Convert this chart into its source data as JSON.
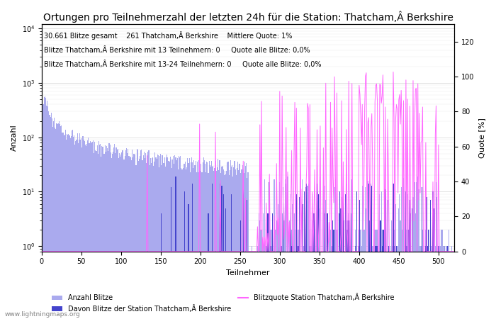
{
  "title": "Ortungen pro Teilnehmerzahl der letzten 24h für die Station: Thatcham,Â Berkshire",
  "xlabel": "Teilnehmer",
  "ylabel_left": "Anzahl",
  "ylabel_right": "Quote [%]",
  "annotation_lines": [
    "30.661 Blitze gesamt    261 Thatcham,Â Berkshire    Mittlere Quote: 1%",
    "Blitze Thatcham,Â Berkshire mit 13 Teilnehmern: 0     Quote alle Blitze: 0,0%",
    "Blitze Thatcham,Â Berkshire mit 13-24 Teilnehmern: 0     Quote alle Blitze: 0,0%"
  ],
  "legend_entries": [
    "Anzahl Blitze",
    "Davon Blitze der Station Thatcham,Â Berkshire",
    "Blitzquote Station Thatcham,Â Berkshire"
  ],
  "bar_color_light": "#aaaaee",
  "bar_color_dark": "#4444cc",
  "line_color": "#ff66ff",
  "watermark": "www.lightningmaps.org",
  "xlim": [
    0,
    520
  ],
  "ylim_right": [
    0,
    130
  ],
  "ylog_min": 0.8,
  "ylog_max": 12000,
  "right_yticks": [
    0,
    20,
    40,
    60,
    80,
    100,
    120
  ],
  "title_fontsize": 10,
  "annotation_fontsize": 7,
  "num_participants": 520
}
